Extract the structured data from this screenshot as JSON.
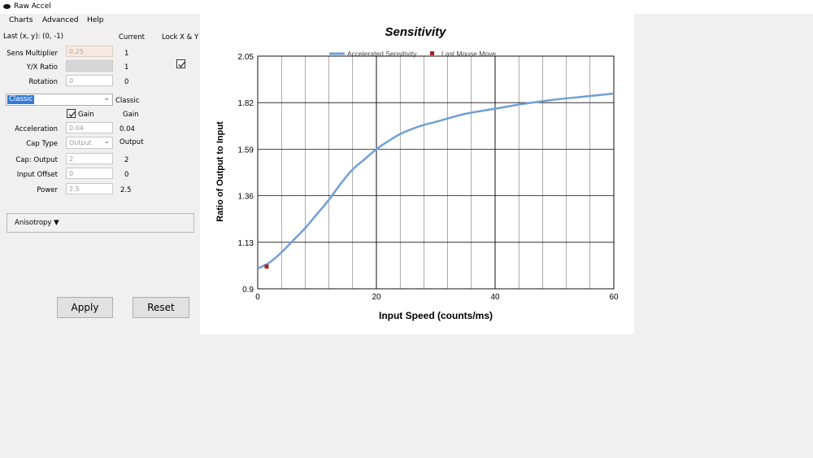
{
  "window": {
    "title": "Raw Accel"
  },
  "menu": [
    "Charts",
    "Advanced",
    "Help"
  ],
  "header": {
    "last_xy": "Last (x, y): (0, -1)",
    "current": "Current",
    "lock": "Lock X & Y"
  },
  "fields": {
    "sens_multiplier": {
      "label": "Sens Multiplier",
      "value": "0.25",
      "current": "1"
    },
    "yx_ratio": {
      "label": "Y/X Ratio",
      "value": "",
      "current": "1"
    },
    "rotation": {
      "label": "Rotation",
      "value": "0",
      "current": "0"
    },
    "accel_type": {
      "value": "Classic",
      "current": "Classic"
    },
    "gain": {
      "label": "Gain",
      "current": "Gain"
    },
    "acceleration": {
      "label": "Acceleration",
      "value": "0.04",
      "current": "0.04"
    },
    "cap_type": {
      "label": "Cap Type",
      "value": "Output",
      "current": "Output"
    },
    "cap_output": {
      "label": "Cap: Output",
      "value": "2",
      "current": "2"
    },
    "input_offset": {
      "label": "Input Offset",
      "value": "0",
      "current": "0"
    },
    "power": {
      "label": "Power",
      "value": "2.5",
      "current": "2.5"
    }
  },
  "anisotropy": {
    "label": "Anisotropy ▼"
  },
  "buttons": {
    "apply": "Apply",
    "reset": "Reset"
  },
  "chart_data": {
    "type": "line",
    "title": "Sensitivity",
    "xlabel": "Input Speed (counts/ms)",
    "ylabel": "Ratio of Output to Input",
    "xlim": [
      0,
      60
    ],
    "ylim": [
      0.9,
      2.05
    ],
    "xticks": [
      "0",
      "20",
      "40",
      "60"
    ],
    "yticks": [
      "0.9",
      "1.13",
      "1.36",
      "1.59",
      "1.82",
      "2.05"
    ],
    "legend": [
      "Accelerated Sensitivity",
      "Last Mouse Move"
    ],
    "colors": {
      "line": "#6fa0d6",
      "marker": "#b02020"
    },
    "series": [
      {
        "name": "Accelerated Sensitivity",
        "x": [
          0,
          2,
          4,
          6,
          8,
          10,
          12,
          14,
          16,
          18,
          20,
          22,
          24,
          26,
          28,
          30,
          35,
          40,
          45,
          50,
          55,
          60
        ],
        "y": [
          1.0,
          1.03,
          1.08,
          1.14,
          1.2,
          1.27,
          1.34,
          1.42,
          1.49,
          1.54,
          1.59,
          1.63,
          1.665,
          1.69,
          1.71,
          1.725,
          1.765,
          1.79,
          1.815,
          1.835,
          1.85,
          1.865
        ]
      }
    ],
    "last_mouse_move": {
      "x": 1.5,
      "y": 1.01
    }
  }
}
